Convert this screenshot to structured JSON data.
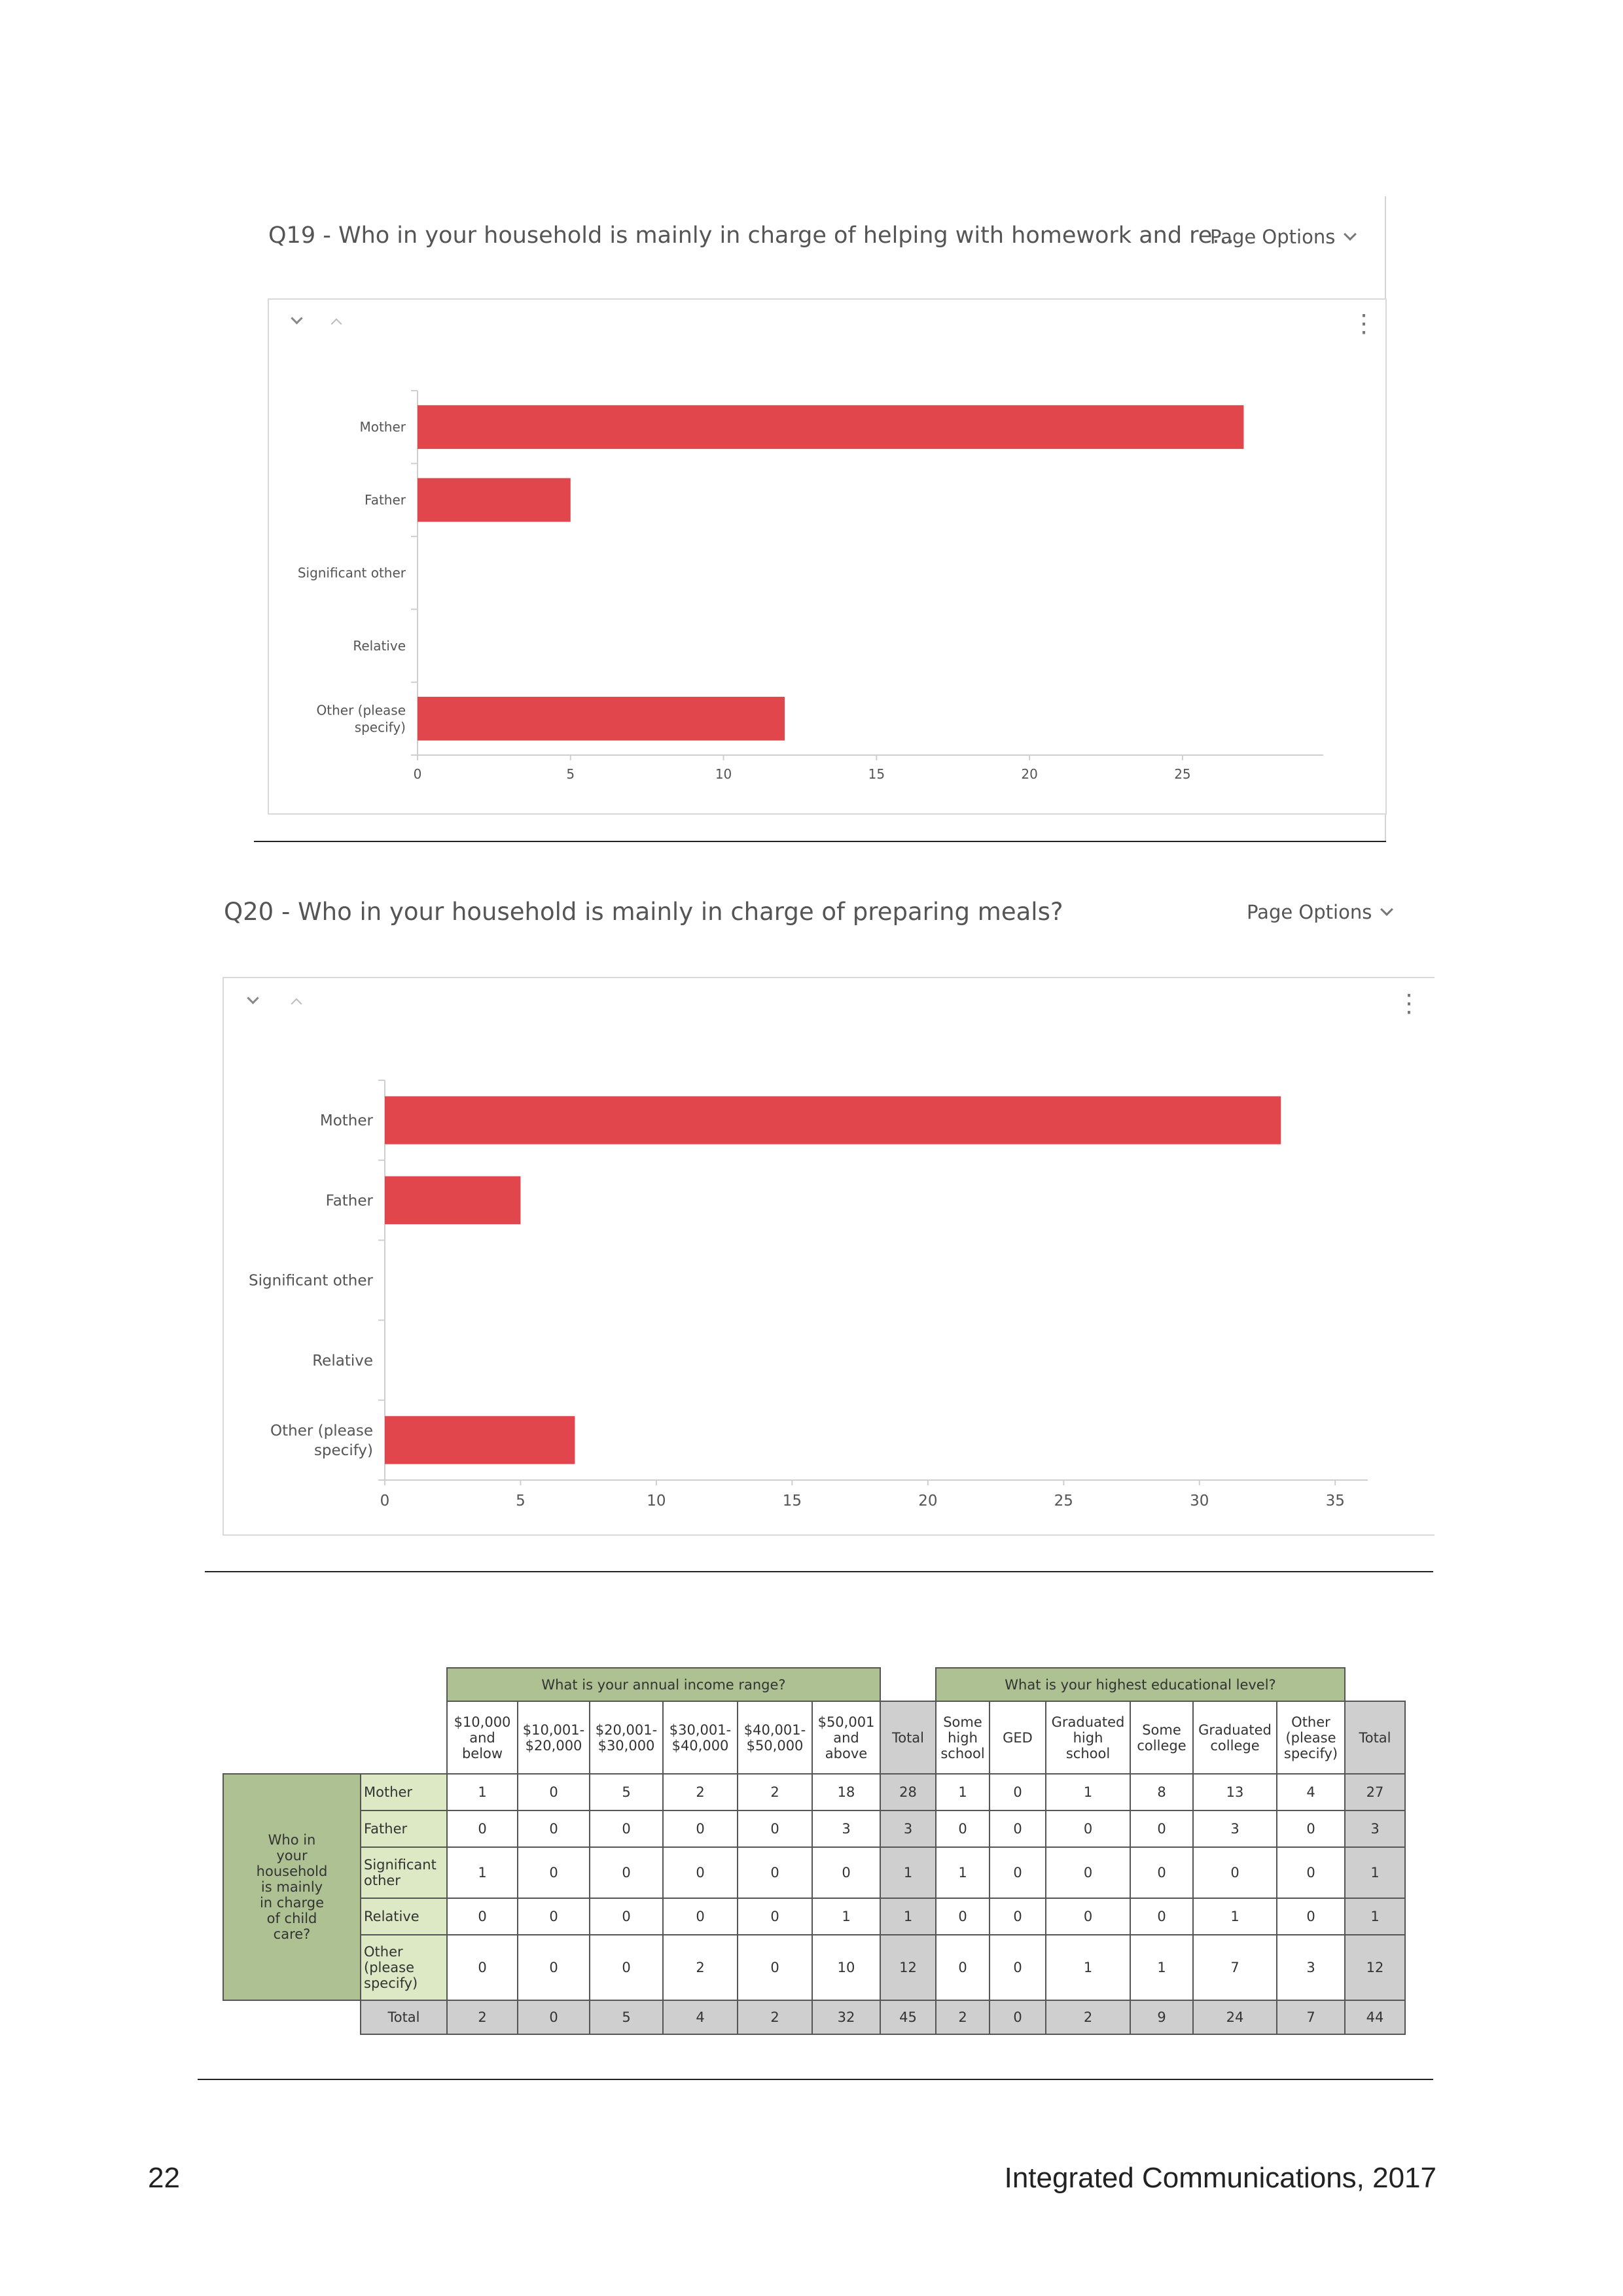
{
  "q19": {
    "title": "Q19 - Who in your household is mainly in charge of helping with homework and re...",
    "page_options": "Page Options",
    "chart_data": {
      "type": "bar",
      "orientation": "horizontal",
      "categories": [
        "Mother",
        "Father",
        "Significant other",
        "Relative",
        "Other (please specify)"
      ],
      "values": [
        27,
        5,
        0,
        0,
        12
      ],
      "xlim": [
        0,
        29.6
      ],
      "xticks": [
        0,
        5,
        10,
        15,
        20,
        25
      ],
      "color": "#e0464c"
    }
  },
  "q20": {
    "title": "Q20 - Who in your household is mainly in charge of preparing meals?",
    "page_options": "Page Options",
    "chart_data": {
      "type": "bar",
      "orientation": "horizontal",
      "categories": [
        "Mother",
        "Father",
        "Significant other",
        "Relative",
        "Other (please specify)"
      ],
      "values": [
        33,
        5,
        0,
        0,
        7
      ],
      "xlim": [
        0,
        36.2
      ],
      "xticks": [
        0,
        5,
        10,
        15,
        20,
        25,
        30,
        35
      ],
      "color": "#e0464c"
    }
  },
  "crosstab": {
    "income_header": "What is your annual income range?",
    "education_header": "What is your highest educational level?",
    "row_group_label": "Who in your household is mainly in charge of child care?",
    "income_cols": [
      "$10,000 and below",
      "$10,001- $20,000",
      "$20,001- $30,000",
      "$30,001- $40,000",
      "$40,001- $50,000",
      "$50,001 and above"
    ],
    "education_cols": [
      "Some high school",
      "GED",
      "Graduated high school",
      "Some college",
      "Graduated college",
      "Other (please specify)"
    ],
    "total_label": "Total",
    "rows": [
      {
        "label": "Mother",
        "income": [
          "1",
          "0",
          "5",
          "2",
          "2",
          "18"
        ],
        "income_total": "28",
        "edu": [
          "1",
          "0",
          "1",
          "8",
          "13",
          "4"
        ],
        "edu_total": "27"
      },
      {
        "label": "Father",
        "income": [
          "0",
          "0",
          "0",
          "0",
          "0",
          "3"
        ],
        "income_total": "3",
        "edu": [
          "0",
          "0",
          "0",
          "0",
          "3",
          "0"
        ],
        "edu_total": "3"
      },
      {
        "label": "Significant other",
        "income": [
          "1",
          "0",
          "0",
          "0",
          "0",
          "0"
        ],
        "income_total": "1",
        "edu": [
          "1",
          "0",
          "0",
          "0",
          "0",
          "0"
        ],
        "edu_total": "1"
      },
      {
        "label": "Relative",
        "income": [
          "0",
          "0",
          "0",
          "0",
          "0",
          "1"
        ],
        "income_total": "1",
        "edu": [
          "0",
          "0",
          "0",
          "0",
          "1",
          "0"
        ],
        "edu_total": "1"
      },
      {
        "label": "Other (please specify)",
        "income": [
          "0",
          "0",
          "0",
          "2",
          "0",
          "10"
        ],
        "income_total": "12",
        "edu": [
          "0",
          "0",
          "1",
          "1",
          "7",
          "3"
        ],
        "edu_total": "12"
      }
    ],
    "totals_row": {
      "label": "Total",
      "income": [
        "2",
        "0",
        "5",
        "4",
        "2",
        "32"
      ],
      "income_total": "45",
      "edu": [
        "2",
        "0",
        "2",
        "9",
        "24",
        "7"
      ],
      "edu_total": "44"
    }
  },
  "footer": {
    "page_number": "22",
    "publication": "Integrated Communications, 2017"
  }
}
